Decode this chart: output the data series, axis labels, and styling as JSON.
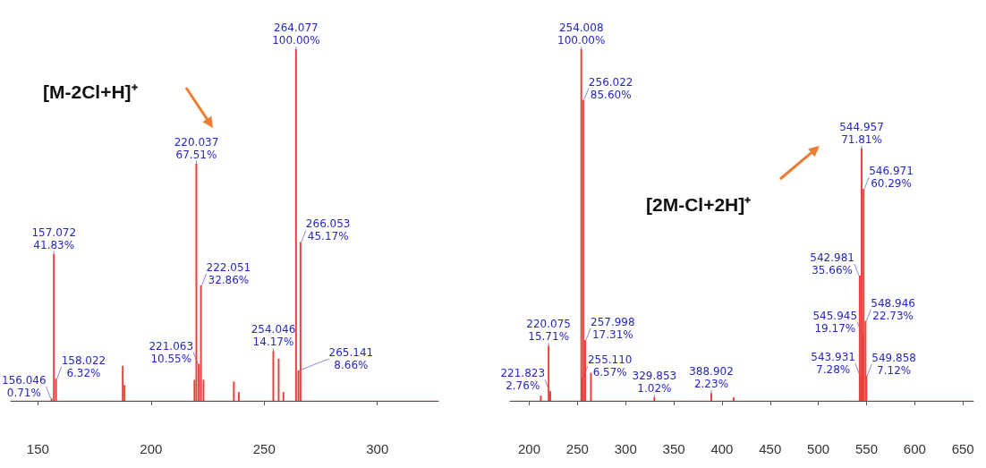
{
  "chart_data": [
    {
      "type": "bar",
      "x": [
        156.046,
        157.072,
        158.022,
        187.5,
        188.3,
        219.2,
        220.037,
        221.063,
        222.051,
        223.2,
        236.6,
        238.8,
        254.046,
        256.4,
        258.5,
        264.077,
        265.141,
        266.053
      ],
      "values": [
        0.71,
        41.83,
        6.32,
        10,
        4.5,
        6,
        67.51,
        10.55,
        32.86,
        6,
        5.5,
        2.5,
        14.17,
        12,
        2.5,
        100,
        8.66,
        45.17
      ],
      "value_labels": [
        "156.046\n0.71%",
        "157.072\n41.83%",
        "158.022\n6.32%",
        null,
        null,
        null,
        "220.037\n67.51%",
        "221.063\n10.55%",
        "222.051\n32.86%",
        null,
        null,
        null,
        "254.046\n14.17%",
        null,
        null,
        "264.077\n100.00%",
        "265.141\n8.66%",
        "266.053\n45.17%"
      ],
      "color": "#e8423f",
      "xlim": [
        138,
        327
      ],
      "xticks": [
        150,
        200,
        250,
        300
      ],
      "ylim": [
        0,
        100
      ],
      "tick_labels": "x",
      "grid": false,
      "annotations": [
        "[M-2Cl+H]⁺"
      ]
    },
    {
      "type": "bar",
      "x": [
        212,
        220.075,
        221.823,
        254.008,
        255.11,
        256.022,
        257.998,
        264,
        329.853,
        388.902,
        412,
        542.981,
        543.931,
        544.957,
        545.945,
        546.971,
        548.946,
        549.858
      ],
      "values": [
        1.5,
        15.71,
        2.76,
        100,
        6.57,
        85.6,
        17.31,
        8,
        1.02,
        2.23,
        1,
        35.66,
        7.28,
        71.81,
        19.17,
        60.29,
        22.73,
        7.12
      ],
      "value_labels": [
        null,
        "220.075\n15.71%",
        "221.823\n2.76%",
        "254.008\n100.00%",
        "255.110\n6.57%",
        "256.022\n85.60%",
        "257.998\n17.31%",
        null,
        "329.853\n1.02%",
        "388.902\n2.23%",
        null,
        "542.981\n35.66%",
        "543.931\n7.28%",
        "544.957\n71.81%",
        "545.945\n19.17%",
        "546.971\n60.29%",
        "548.946\n22.73%",
        "549.858\n7.12%"
      ],
      "color": "#e8423f",
      "xlim": [
        180,
        661
      ],
      "xticks": [
        200,
        250,
        300,
        350,
        400,
        450,
        500,
        550,
        600,
        650
      ],
      "ylim": [
        0,
        100
      ],
      "tick_labels": "x",
      "grid": false,
      "annotations": [
        "[2M-Cl+2H]⁺"
      ]
    }
  ]
}
